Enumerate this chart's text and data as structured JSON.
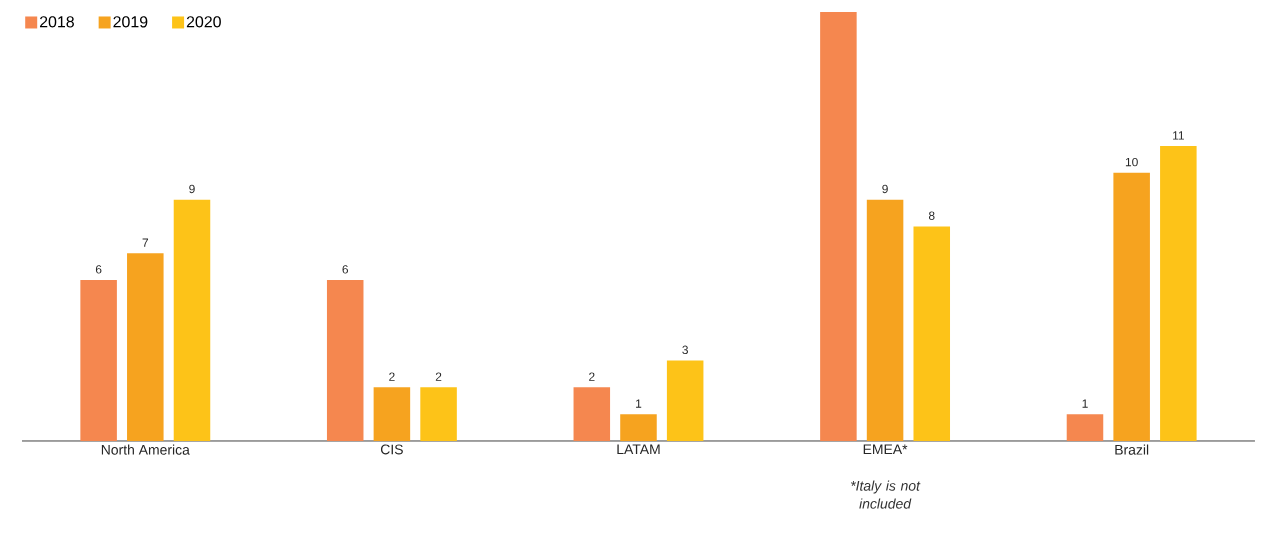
{
  "chart_data": {
    "type": "bar",
    "categories": [
      "North America",
      "CIS",
      "LATAM",
      "EMEA*",
      "Brazil"
    ],
    "series": [
      {
        "name": "2018",
        "color": "#f5874f",
        "values": [
          6,
          6,
          2,
          16,
          1
        ],
        "value_labels": [
          "6",
          "6",
          "2",
          null,
          "1"
        ]
      },
      {
        "name": "2019",
        "color": "#f6a31f",
        "values": [
          7,
          2,
          1,
          9,
          10
        ],
        "value_labels": [
          "7",
          "2",
          "1",
          "9",
          "10"
        ]
      },
      {
        "name": "2020",
        "color": "#fdc318",
        "values": [
          9,
          2,
          3,
          8,
          11
        ],
        "value_labels": [
          "9",
          "2",
          "3",
          "8",
          "11"
        ]
      }
    ],
    "ylim": [
      0,
      16
    ],
    "tick_labels": "x",
    "legend": "top left",
    "annotations": [
      "*Italy is not included"
    ]
  }
}
